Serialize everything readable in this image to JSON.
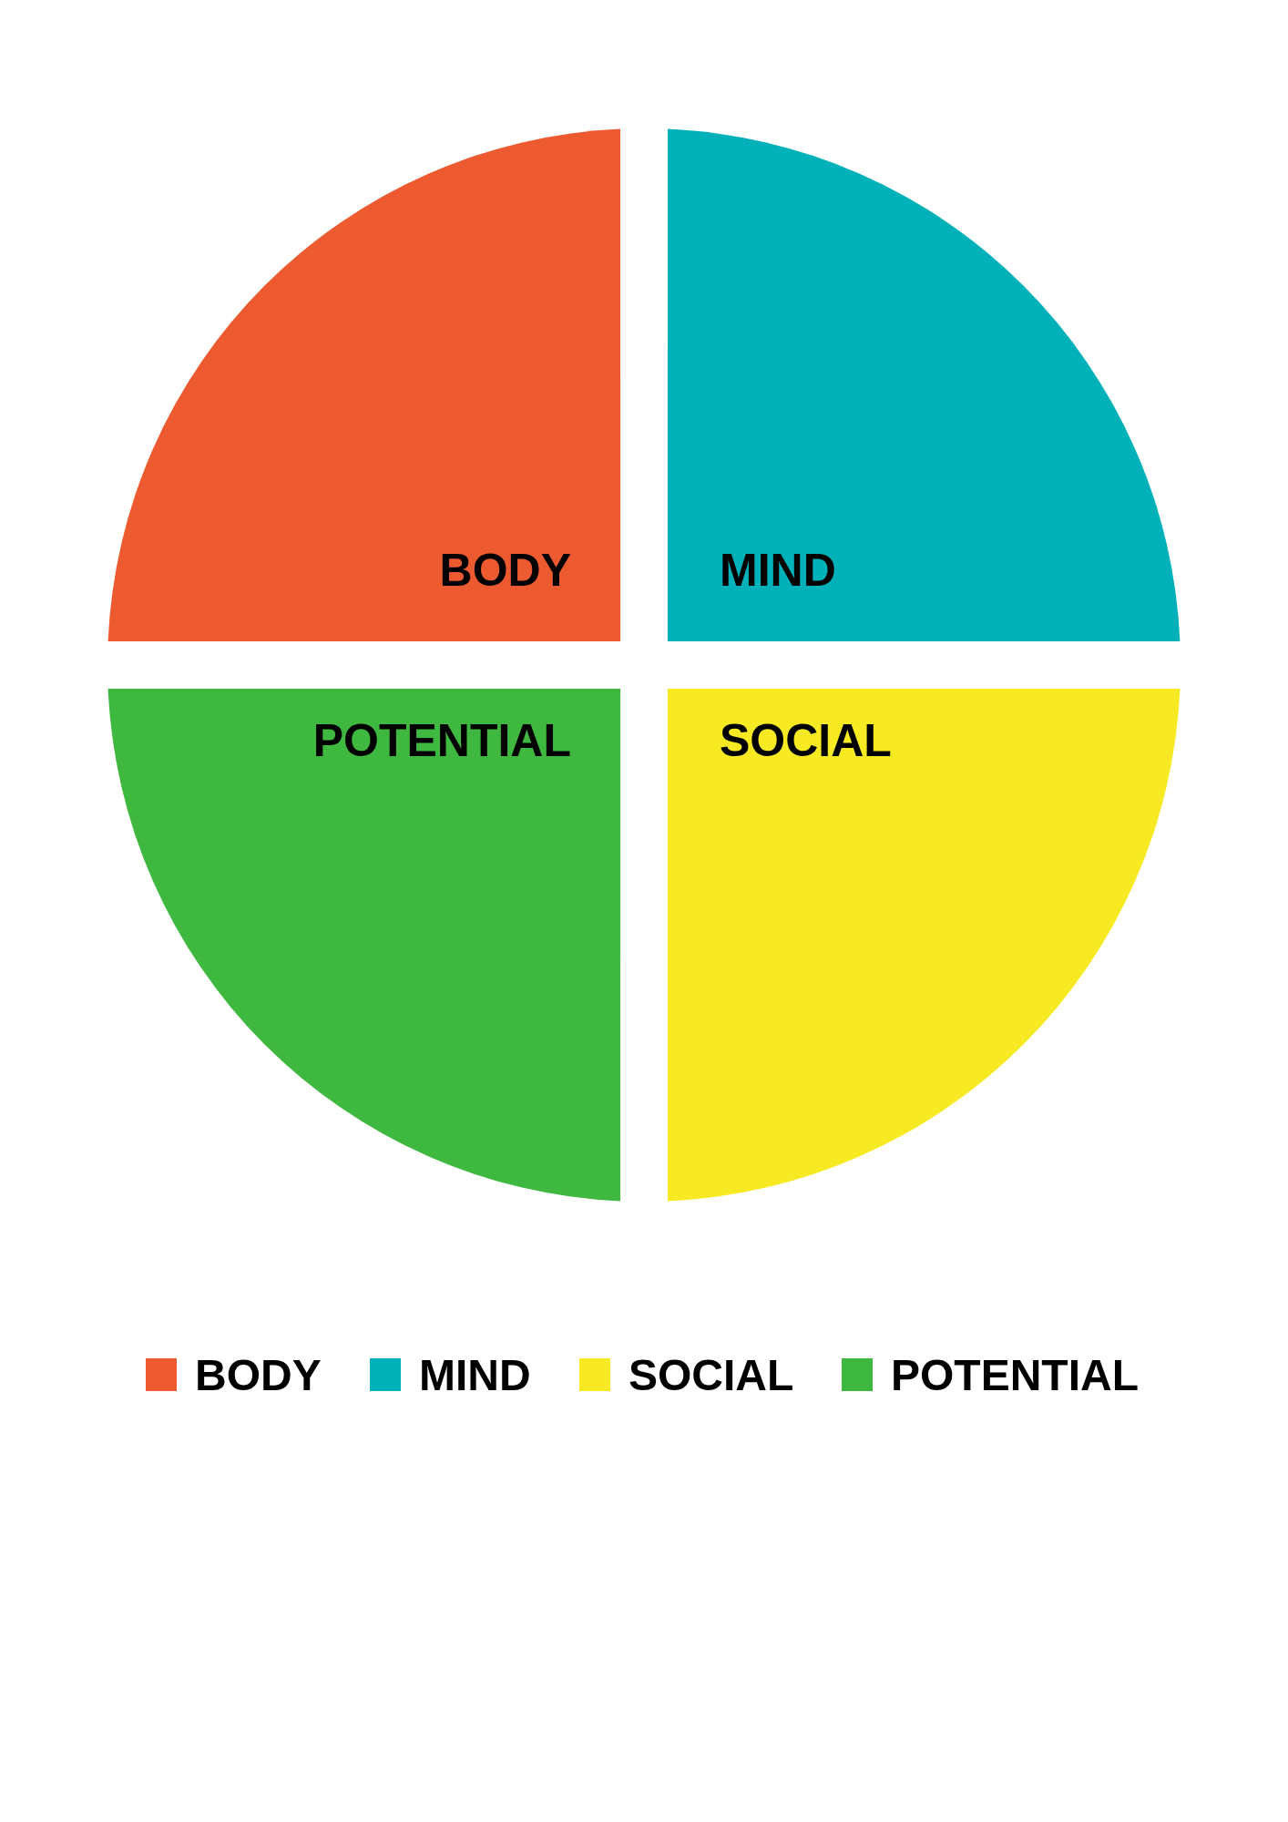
{
  "chart_data": {
    "type": "pie",
    "categories": [
      "BODY",
      "MIND",
      "SOCIAL",
      "POTENTIAL"
    ],
    "values": [
      25,
      25,
      25,
      25
    ],
    "colors": [
      "#ee5a2f",
      "#00b1ba",
      "#f7ea22",
      "#3eb83e"
    ],
    "legend": "bottom"
  }
}
